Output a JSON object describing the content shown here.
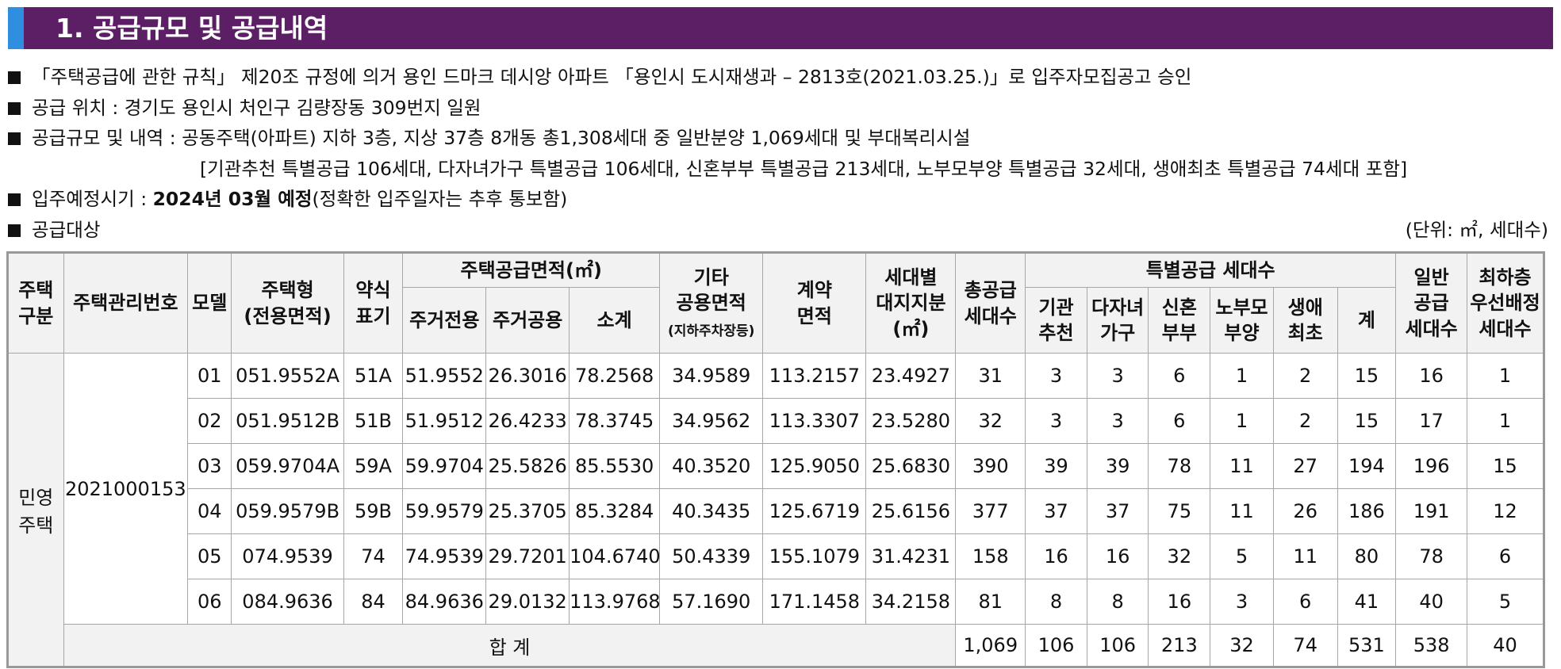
{
  "header": {
    "title": "1. 공급규모 및 공급내역"
  },
  "bullets": {
    "line1": "「주택공급에 관한 규칙」 제20조 규정에 의거 용인 드마크 데시앙 아파트 「용인시 도시재생과 – 2813호(2021.03.25.)」로 입주자모집공고 승인",
    "line2": "공급 위치 : 경기도 용인시 처인구 김량장동 309번지 일원",
    "line3": "공급규모 및 내역 : 공동주택(아파트) 지하 3층, 지상 37층 8개동 총1,308세대 중 일반분양 1,069세대 및 부대복리시설",
    "line3b": "[기관추천 특별공급 106세대, 다자녀가구 특별공급 106세대, 신혼부부 특별공급 213세대, 노부모부양 특별공급 32세대, 생애최초 특별공급 74세대 포함]",
    "line4_prefix": "입주예정시기 : ",
    "line4_bold": "2024년 03월 예정",
    "line4_suffix": "(정확한 입주일자는 추후 통보함)",
    "line5": "공급대상",
    "unit": "(단위: ㎡, 세대수)"
  },
  "table": {
    "headers": {
      "type": [
        "주택",
        "구분"
      ],
      "mgmt_no": "주택관리번호",
      "model": "모델",
      "housing_type": [
        "주택형",
        "(전용면적)"
      ],
      "abbr": [
        "약식",
        "표기"
      ],
      "supply_area": "주택공급면적(㎡)",
      "exclusive": "주거전용",
      "common": "주거공용",
      "subtotal": "소계",
      "other_area": [
        "기타",
        "공용면적"
      ],
      "other_area_sub": "(지하주차장등)",
      "contract_area": [
        "계약",
        "면적"
      ],
      "land_share": [
        "세대별",
        "대지지분",
        "(㎡)"
      ],
      "total_supply": [
        "총공급",
        "세대수"
      ],
      "special": "특별공급 세대수",
      "institution": [
        "기관",
        "추천"
      ],
      "multi_child": [
        "다자녀",
        "가구"
      ],
      "newlywed": [
        "신혼",
        "부부"
      ],
      "elderly": [
        "노부모",
        "부양"
      ],
      "first_time": [
        "생애",
        "최초"
      ],
      "special_sum": "계",
      "general": [
        "일반",
        "공급",
        "세대수"
      ],
      "lowest_floor": [
        "최하층",
        "우선배정",
        "세대수"
      ]
    },
    "group_type": [
      "민영",
      "주택"
    ],
    "mgmt_no": "2021000153",
    "rows": [
      [
        "01",
        "051.9552A",
        "51A",
        "51.9552",
        "26.3016",
        "78.2568",
        "34.9589",
        "113.2157",
        "23.4927",
        "31",
        "3",
        "3",
        "6",
        "1",
        "2",
        "15",
        "16",
        "1"
      ],
      [
        "02",
        "051.9512B",
        "51B",
        "51.9512",
        "26.4233",
        "78.3745",
        "34.9562",
        "113.3307",
        "23.5280",
        "32",
        "3",
        "3",
        "6",
        "1",
        "2",
        "15",
        "17",
        "1"
      ],
      [
        "03",
        "059.9704A",
        "59A",
        "59.9704",
        "25.5826",
        "85.5530",
        "40.3520",
        "125.9050",
        "25.6830",
        "390",
        "39",
        "39",
        "78",
        "11",
        "27",
        "194",
        "196",
        "15"
      ],
      [
        "04",
        "059.9579B",
        "59B",
        "59.9579",
        "25.3705",
        "85.3284",
        "40.3435",
        "125.6719",
        "25.6156",
        "377",
        "37",
        "37",
        "75",
        "11",
        "26",
        "186",
        "191",
        "12"
      ],
      [
        "05",
        "074.9539",
        "74",
        "74.9539",
        "29.7201",
        "104.6740",
        "50.4339",
        "155.1079",
        "31.4231",
        "158",
        "16",
        "16",
        "32",
        "5",
        "11",
        "80",
        "78",
        "6"
      ],
      [
        "06",
        "084.9636",
        "84",
        "84.9636",
        "29.0132",
        "113.9768",
        "57.1690",
        "171.1458",
        "34.2158",
        "81",
        "8",
        "8",
        "16",
        "3",
        "6",
        "41",
        "40",
        "5"
      ]
    ],
    "total_label": "합 계",
    "totals": [
      "1,069",
      "106",
      "106",
      "213",
      "32",
      "74",
      "531",
      "538",
      "40"
    ]
  }
}
